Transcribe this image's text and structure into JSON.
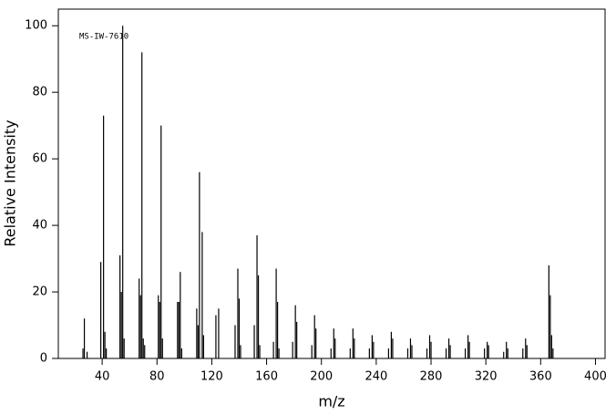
{
  "chart_data": {
    "type": "stem",
    "annotation": "MS-IW-7610",
    "x_label": "m/z",
    "y_label": "Relative Intensity",
    "color": "#000000",
    "xlim": [
      8,
      407
    ],
    "ylim": [
      0,
      105
    ],
    "xticks": [
      40,
      80,
      120,
      160,
      200,
      240,
      280,
      320,
      360,
      400
    ],
    "yticks": [
      0,
      20,
      40,
      60,
      80,
      100
    ],
    "x": [
      26,
      27,
      29,
      39,
      41,
      42,
      43,
      53,
      54,
      55,
      56,
      67,
      68,
      69,
      70,
      71,
      81,
      82,
      83,
      84,
      95,
      96,
      97,
      98,
      109,
      110,
      111,
      113,
      114,
      123,
      125,
      137,
      139,
      140,
      141,
      151,
      153,
      154,
      155,
      165,
      167,
      168,
      169,
      179,
      181,
      182,
      193,
      195,
      196,
      207,
      209,
      210,
      221,
      223,
      224,
      235,
      237,
      238,
      249,
      251,
      252,
      263,
      265,
      266,
      277,
      279,
      280,
      291,
      293,
      294,
      305,
      307,
      308,
      319,
      321,
      322,
      333,
      335,
      336,
      347,
      349,
      350,
      366,
      367,
      368,
      369
    ],
    "values": [
      3,
      12,
      2,
      29,
      73,
      8,
      3,
      31,
      20,
      100,
      6,
      24,
      19,
      92,
      6,
      4,
      19,
      17,
      70,
      6,
      17,
      17,
      26,
      3,
      15,
      10,
      56,
      38,
      7,
      13,
      15,
      10,
      27,
      18,
      4,
      10,
      37,
      25,
      4,
      5,
      27,
      17,
      3,
      5,
      16,
      11,
      4,
      13,
      9,
      3,
      9,
      6,
      3,
      9,
      6,
      3,
      7,
      5,
      3,
      8,
      6,
      3,
      6,
      4,
      3,
      7,
      5,
      3,
      6,
      4,
      3,
      7,
      5,
      3,
      5,
      4,
      2,
      5,
      3,
      3,
      6,
      4,
      28,
      19,
      7,
      3
    ]
  }
}
